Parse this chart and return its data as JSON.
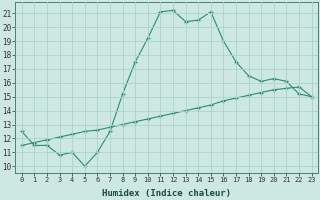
{
  "line1_x": [
    0,
    1,
    2,
    3,
    4,
    5,
    6,
    7,
    8,
    9,
    10,
    11,
    12,
    13,
    14,
    15,
    16,
    17,
    18,
    19,
    20,
    21,
    22,
    23
  ],
  "line1_y": [
    12.5,
    11.5,
    11.5,
    10.8,
    11.0,
    10.0,
    11.0,
    12.5,
    15.2,
    17.5,
    19.2,
    21.1,
    21.2,
    20.4,
    20.5,
    21.1,
    19.0,
    17.5,
    16.5,
    16.1,
    16.3,
    16.1,
    15.2,
    15.0
  ],
  "line2_x": [
    0,
    1,
    2,
    3,
    4,
    5,
    6,
    7,
    8,
    9,
    10,
    11,
    12,
    13,
    14,
    15,
    16,
    17,
    18,
    19,
    20,
    21,
    22,
    23
  ],
  "line2_y": [
    11.5,
    11.7,
    11.9,
    12.1,
    12.3,
    12.5,
    12.6,
    12.8,
    13.0,
    13.2,
    13.4,
    13.6,
    13.8,
    14.0,
    14.2,
    14.4,
    14.7,
    14.9,
    15.1,
    15.3,
    15.5,
    15.6,
    15.7,
    15.0
  ],
  "line_color": "#2d8b74",
  "bg_color": "#cce8e0",
  "grid_color": "#aad4c8",
  "xlabel": "Humidex (Indice chaleur)",
  "ylabel_ticks": [
    10,
    11,
    12,
    13,
    14,
    15,
    16,
    17,
    18,
    19,
    20,
    21
  ],
  "xlim": [
    -0.5,
    23.5
  ],
  "ylim": [
    9.5,
    21.8
  ],
  "xtick_labels": [
    "0",
    "1",
    "2",
    "3",
    "4",
    "5",
    "6",
    "7",
    "8",
    "9",
    "10",
    "11",
    "12",
    "13",
    "14",
    "15",
    "16",
    "17",
    "18",
    "19",
    "20",
    "21",
    "22",
    "23"
  ]
}
